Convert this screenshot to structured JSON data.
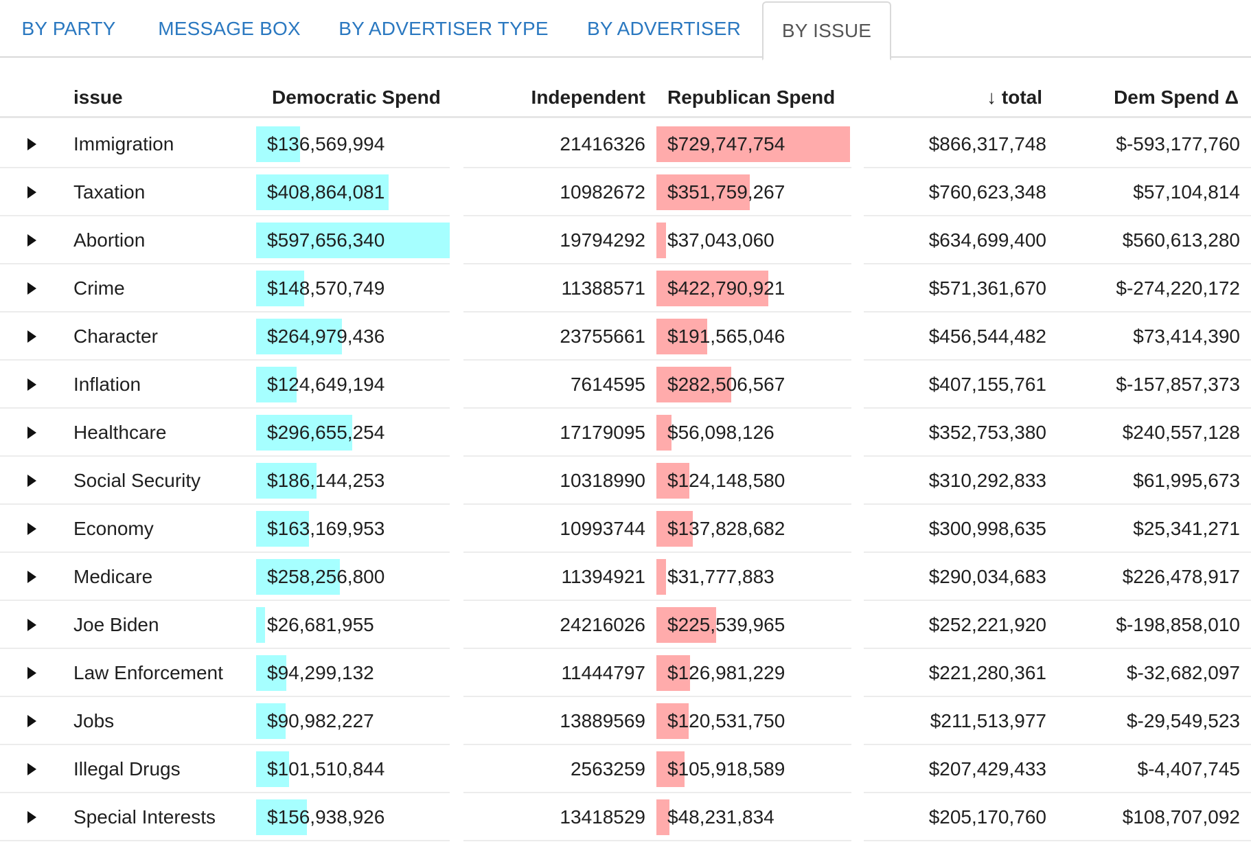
{
  "tabs": [
    {
      "label": "BY PARTY",
      "active": false
    },
    {
      "label": "MESSAGE BOX",
      "active": false
    },
    {
      "label": "BY ADVERTISER TYPE",
      "active": false
    },
    {
      "label": "BY ADVERTISER",
      "active": false
    },
    {
      "label": "BY ISSUE",
      "active": true
    }
  ],
  "table": {
    "columns": {
      "issue": "issue",
      "dem": "Democratic Spend",
      "ind": "Independent",
      "rep": "Republican Spend",
      "total": "↓ total",
      "delta": "Dem Spend Δ"
    },
    "sort_icon": "arrow-down-icon",
    "colors": {
      "dem_bar": "#a6ffff",
      "rep_bar": "#ffabab"
    },
    "rows": [
      {
        "issue": "Immigration",
        "dem": "$136,569,994",
        "dem_value": 136569994,
        "ind": "21416326",
        "rep": "$729,747,754",
        "rep_value": 729747754,
        "total": "$866,317,748",
        "delta": "$-593,177,760"
      },
      {
        "issue": "Taxation",
        "dem": "$408,864,081",
        "dem_value": 408864081,
        "ind": "10982672",
        "rep": "$351,759,267",
        "rep_value": 351759267,
        "total": "$760,623,348",
        "delta": "$57,104,814"
      },
      {
        "issue": "Abortion",
        "dem": "$597,656,340",
        "dem_value": 597656340,
        "ind": "19794292",
        "rep": "$37,043,060",
        "rep_value": 37043060,
        "total": "$634,699,400",
        "delta": "$560,613,280"
      },
      {
        "issue": "Crime",
        "dem": "$148,570,749",
        "dem_value": 148570749,
        "ind": "11388571",
        "rep": "$422,790,921",
        "rep_value": 422790921,
        "total": "$571,361,670",
        "delta": "$-274,220,172"
      },
      {
        "issue": "Character",
        "dem": "$264,979,436",
        "dem_value": 264979436,
        "ind": "23755661",
        "rep": "$191,565,046",
        "rep_value": 191565046,
        "total": "$456,544,482",
        "delta": "$73,414,390"
      },
      {
        "issue": "Inflation",
        "dem": "$124,649,194",
        "dem_value": 124649194,
        "ind": "7614595",
        "rep": "$282,506,567",
        "rep_value": 282506567,
        "total": "$407,155,761",
        "delta": "$-157,857,373"
      },
      {
        "issue": "Healthcare",
        "dem": "$296,655,254",
        "dem_value": 296655254,
        "ind": "17179095",
        "rep": "$56,098,126",
        "rep_value": 56098126,
        "total": "$352,753,380",
        "delta": "$240,557,128"
      },
      {
        "issue": "Social Security",
        "dem": "$186,144,253",
        "dem_value": 186144253,
        "ind": "10318990",
        "rep": "$124,148,580",
        "rep_value": 124148580,
        "total": "$310,292,833",
        "delta": "$61,995,673"
      },
      {
        "issue": "Economy",
        "dem": "$163,169,953",
        "dem_value": 163169953,
        "ind": "10993744",
        "rep": "$137,828,682",
        "rep_value": 137828682,
        "total": "$300,998,635",
        "delta": "$25,341,271"
      },
      {
        "issue": "Medicare",
        "dem": "$258,256,800",
        "dem_value": 258256800,
        "ind": "11394921",
        "rep": "$31,777,883",
        "rep_value": 31777883,
        "total": "$290,034,683",
        "delta": "$226,478,917"
      },
      {
        "issue": "Joe Biden",
        "dem": "$26,681,955",
        "dem_value": 26681955,
        "ind": "24216026",
        "rep": "$225,539,965",
        "rep_value": 225539965,
        "total": "$252,221,920",
        "delta": "$-198,858,010"
      },
      {
        "issue": "Law Enforcement",
        "dem": "$94,299,132",
        "dem_value": 94299132,
        "ind": "11444797",
        "rep": "$126,981,229",
        "rep_value": 126981229,
        "total": "$221,280,361",
        "delta": "$-32,682,097"
      },
      {
        "issue": "Jobs",
        "dem": "$90,982,227",
        "dem_value": 90982227,
        "ind": "13889569",
        "rep": "$120,531,750",
        "rep_value": 120531750,
        "total": "$211,513,977",
        "delta": "$-29,549,523"
      },
      {
        "issue": "Illegal Drugs",
        "dem": "$101,510,844",
        "dem_value": 101510844,
        "ind": "2563259",
        "rep": "$105,918,589",
        "rep_value": 105918589,
        "total": "$207,429,433",
        "delta": "$-4,407,745"
      },
      {
        "issue": "Special Interests",
        "dem": "$156,938,926",
        "dem_value": 156938926,
        "ind": "13418529",
        "rep": "$48,231,834",
        "rep_value": 48231834,
        "total": "$205,170,760",
        "delta": "$108,707,092"
      }
    ]
  }
}
